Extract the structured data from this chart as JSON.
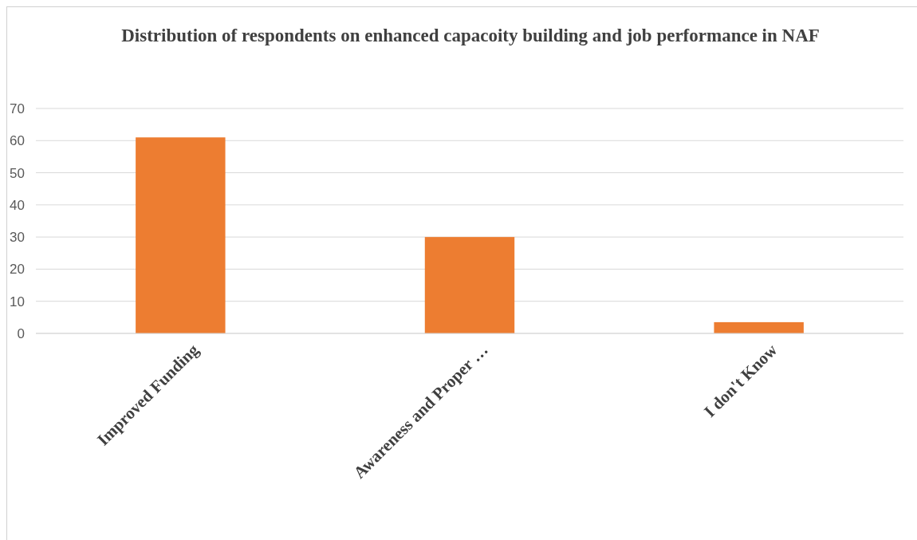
{
  "chart_data": {
    "type": "bar",
    "title": "Distribution of respondents on enhanced capacoity building and job performance in NAF",
    "categories": [
      "Improved Funding",
      "Awareness and Proper …",
      "I don't Know"
    ],
    "values": [
      61,
      30,
      3.5
    ],
    "color": "#ed7d31",
    "ylim": [
      0,
      70
    ],
    "yticks": [
      0,
      10,
      20,
      30,
      40,
      50,
      60,
      70
    ],
    "grid": "y"
  }
}
